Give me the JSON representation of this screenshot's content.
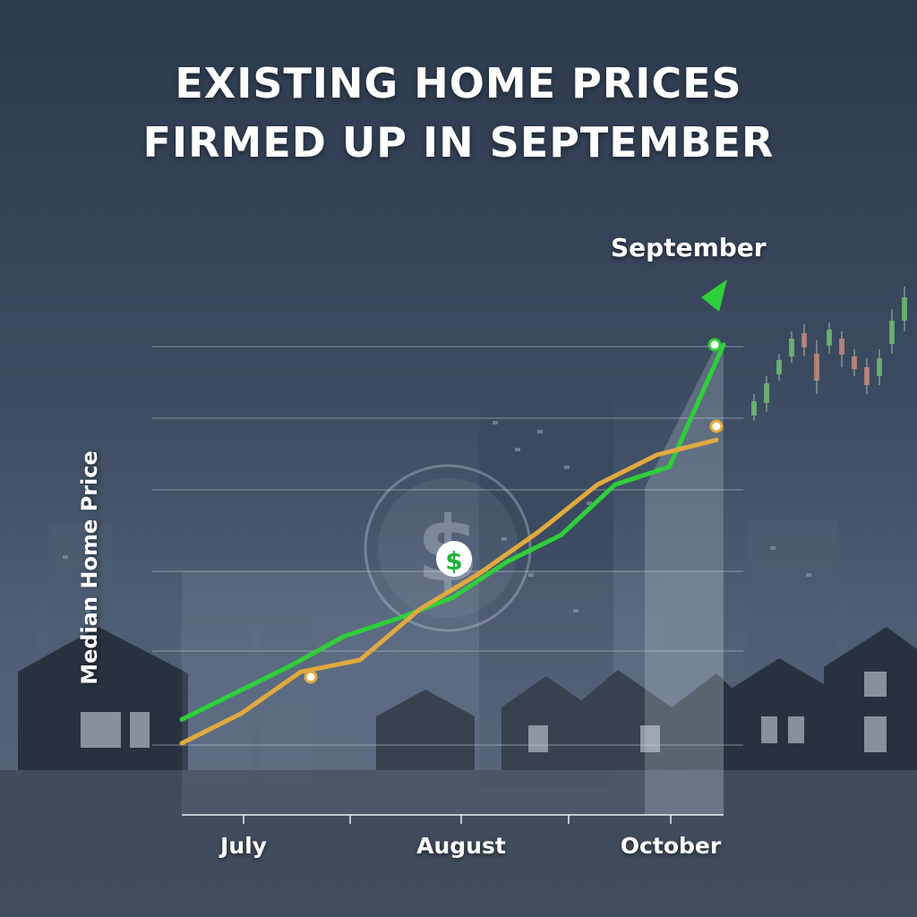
{
  "title_line_1": "EXISTING HOME PRICES",
  "title_line_2": "FIRMED UP IN SEPTEMBER",
  "callout": "September",
  "colors": {
    "series_green": "#2fcf3a",
    "series_orange": "#e2a93f",
    "background": "#3b4a60"
  },
  "icon": "dollar-sign-icon",
  "chart_data": {
    "type": "line",
    "ylabel": "Median Home Price",
    "xlabel": "",
    "x_tick_labels": [
      "July",
      "August",
      "October"
    ],
    "grid": true,
    "legend": "none",
    "series": [
      {
        "color": "#2fcf3a",
        "values": [
          0.8,
          1.7,
          2.6,
          3.6,
          4.2,
          4.9,
          6.1,
          7.0,
          8.7,
          9.3,
          13.4
        ]
      },
      {
        "color": "#e2a93f",
        "values": [
          0.0,
          1.0,
          2.4,
          2.8,
          4.5,
          5.7,
          7.1,
          8.7,
          9.7,
          10.2
        ]
      }
    ]
  }
}
